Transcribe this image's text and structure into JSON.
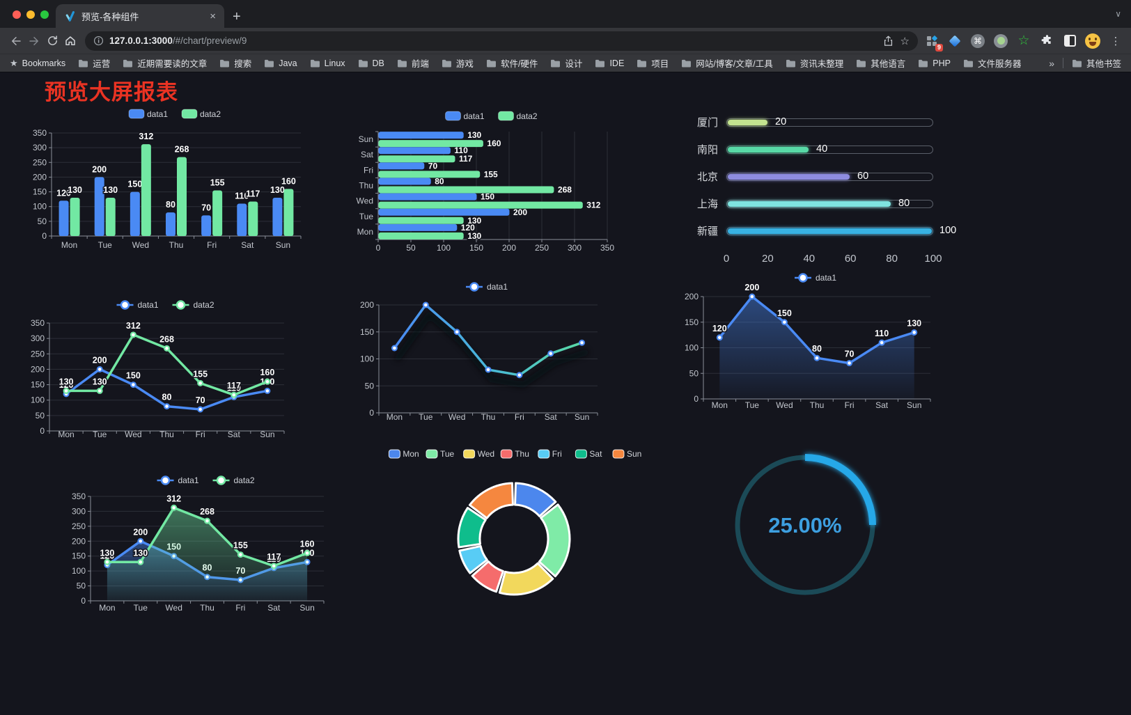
{
  "browser": {
    "tab": {
      "title": "预览-各种组件"
    },
    "url": {
      "host": "127.0.0.1:3000",
      "path": "/#/chart/preview/9"
    },
    "bookmarks_label": "Bookmarks",
    "bookmarks": [
      "运营",
      "近期需要读的文章",
      "搜索",
      "Java",
      "Linux",
      "DB",
      "前端",
      "游戏",
      "软件/硬件",
      "设计",
      "IDE",
      "项目",
      "网站/博客/文章/工具",
      "资讯未整理",
      "其他语言",
      "PHP",
      "文件服务器"
    ],
    "other_bookmarks": "其他书签",
    "extensions": {
      "badge": "9"
    }
  },
  "icons": {
    "close": "×",
    "new_tab": "+",
    "chevron_down": "∨",
    "star": "☆",
    "bookmark_star": "★",
    "overflow": "»",
    "menu": "⋮",
    "command": "⌘",
    "star_outline": "☆"
  },
  "page": {
    "title": "预览大屏报表"
  },
  "palette": {
    "data1": "#4a8af4",
    "data2": "#72e8a3",
    "title_red": "#ea3323"
  },
  "chart_data": [
    {
      "type": "bar",
      "orientation": "vertical",
      "title": "",
      "categories": [
        "Mon",
        "Tue",
        "Wed",
        "Thu",
        "Fri",
        "Sat",
        "Sun"
      ],
      "series": [
        {
          "name": "data1",
          "color": "#4a8af4",
          "values": [
            120,
            200,
            150,
            80,
            70,
            110,
            130
          ]
        },
        {
          "name": "data2",
          "color": "#72e8a3",
          "values": [
            130,
            130,
            312,
            268,
            155,
            117,
            160
          ]
        }
      ],
      "ylim": [
        0,
        350
      ],
      "ystep": 50,
      "legend_position": "top",
      "grid": true,
      "value_labels": true
    },
    {
      "type": "bar",
      "orientation": "horizontal",
      "title": "",
      "categories": [
        "Mon",
        "Tue",
        "Wed",
        "Thu",
        "Fri",
        "Sat",
        "Sun"
      ],
      "series": [
        {
          "name": "data1",
          "color": "#4a8af4",
          "values": [
            120,
            200,
            150,
            80,
            70,
            110,
            130
          ]
        },
        {
          "name": "data2",
          "color": "#72e8a3",
          "values": [
            130,
            130,
            312,
            268,
            155,
            117,
            160
          ]
        }
      ],
      "xlim": [
        0,
        350
      ],
      "xstep": 50,
      "legend_position": "top",
      "grid": true,
      "value_labels": true
    },
    {
      "type": "bar",
      "subtype": "progress",
      "title": "",
      "rows": [
        {
          "label": "厦门",
          "value": 20,
          "color": "#c3e38f"
        },
        {
          "label": "南阳",
          "value": 40,
          "color": "#58d9a6"
        },
        {
          "label": "北京",
          "value": 60,
          "color": "#8e8ce0"
        },
        {
          "label": "上海",
          "value": 80,
          "color": "#7fe3e0"
        },
        {
          "label": "新疆",
          "value": 100,
          "color": "#38b2e3"
        }
      ],
      "xlim": [
        0,
        100
      ],
      "ticks": [
        0,
        20,
        40,
        60,
        80,
        100
      ]
    },
    {
      "type": "line",
      "title": "",
      "categories": [
        "Mon",
        "Tue",
        "Wed",
        "Thu",
        "Fri",
        "Sat",
        "Sun"
      ],
      "series": [
        {
          "name": "data1",
          "color": "#4a8af4",
          "values": [
            120,
            200,
            150,
            80,
            70,
            110,
            130
          ]
        },
        {
          "name": "data2",
          "color": "#72e8a3",
          "values": [
            130,
            130,
            312,
            268,
            155,
            117,
            160
          ]
        }
      ],
      "ylim": [
        0,
        350
      ],
      "ystep": 50,
      "legend_position": "top",
      "grid": true,
      "value_labels": true
    },
    {
      "type": "line",
      "title": "",
      "categories": [
        "Mon",
        "Tue",
        "Wed",
        "Thu",
        "Fri",
        "Sat",
        "Sun"
      ],
      "series": [
        {
          "name": "data1",
          "colors": [
            "#4a8af4",
            "#49b8d8",
            "#59d9a6"
          ],
          "values": [
            120,
            200,
            150,
            80,
            70,
            110,
            130
          ]
        }
      ],
      "ylim": [
        0,
        200
      ],
      "ystep": 50,
      "legend_position": "top",
      "grid": true,
      "value_labels": false,
      "shadow": true
    },
    {
      "type": "area",
      "title": "",
      "categories": [
        "Mon",
        "Tue",
        "Wed",
        "Thu",
        "Fri",
        "Sat",
        "Sun"
      ],
      "series": [
        {
          "name": "data1",
          "color": "#4a8af4",
          "values": [
            120,
            200,
            150,
            80,
            70,
            110,
            130
          ],
          "area": true
        }
      ],
      "ylim": [
        0,
        200
      ],
      "ystep": 50,
      "legend_position": "top",
      "grid": true,
      "value_labels": true
    },
    {
      "type": "area",
      "title": "",
      "categories": [
        "Mon",
        "Tue",
        "Wed",
        "Thu",
        "Fri",
        "Sat",
        "Sun"
      ],
      "series": [
        {
          "name": "data1",
          "color": "#4a8af4",
          "values": [
            120,
            200,
            150,
            80,
            70,
            110,
            130
          ],
          "area": true
        },
        {
          "name": "data2",
          "color": "#72e8a3",
          "values": [
            130,
            130,
            312,
            268,
            155,
            117,
            160
          ],
          "area": true
        }
      ],
      "ylim": [
        0,
        350
      ],
      "ystep": 50,
      "legend_position": "top",
      "grid": true,
      "value_labels": true
    },
    {
      "type": "pie",
      "title": "",
      "inner_radius_ratio": 0.61,
      "categories": [
        "Mon",
        "Tue",
        "Wed",
        "Thu",
        "Fri",
        "Sat",
        "Sun"
      ],
      "values": [
        120,
        200,
        150,
        80,
        70,
        110,
        130
      ],
      "colors": [
        "#4c87ed",
        "#7feba7",
        "#f2d85c",
        "#f56c6c",
        "#58ccf5",
        "#0fbd8c",
        "#f5873f"
      ],
      "legend_position": "top"
    },
    {
      "type": "gauge",
      "title": "",
      "value": 25,
      "label": "25.00%",
      "color": "#28a8e8",
      "track_color": "#1b4a57",
      "text_color": "#3d9fe0"
    }
  ]
}
